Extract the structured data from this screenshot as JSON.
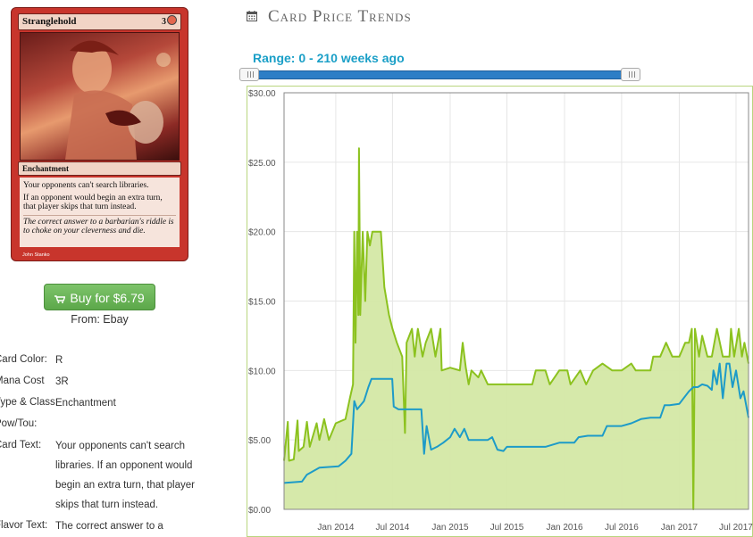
{
  "card": {
    "name": "Stranglehold",
    "mana_cost_glyph": "3",
    "type_line": "Enchantment",
    "rules_text": [
      "Your opponents can't search libraries.",
      "If an opponent would begin an extra turn, that player skips that turn instead."
    ],
    "flavor_text": "The correct answer to a barbarian's riddle is to choke on your cleverness and die.",
    "artist": "John Stanko"
  },
  "buy": {
    "label": "Buy for $6.79",
    "source": "From: Ebay"
  },
  "attributes": [
    {
      "label": "Card Color:",
      "value": "R"
    },
    {
      "label": "Mana Cost",
      "value": "3R"
    },
    {
      "label": "Type & Class:",
      "value": "Enchantment"
    },
    {
      "label": "Pow/Tou:",
      "value": ""
    },
    {
      "label": "Card Text:",
      "value": "Your opponents can't search libraries. If an opponent would begin an extra turn, that player skips that turn instead."
    },
    {
      "label": "Flavor Text:",
      "value": "The correct answer to a"
    }
  ],
  "section": {
    "title": "Card Price Trends",
    "icon": "calendar-icon"
  },
  "range": {
    "label": "Range: 0 - 210 weeks ago",
    "min": 0,
    "max": 210,
    "low": 0,
    "high": 210
  },
  "colors": {
    "accent": "#1a9fc7",
    "green_line": "#8cc21f",
    "green_fill": "#d4e8a5",
    "blue_line": "#1d9bc8",
    "button": "#66b354"
  },
  "chart_data": {
    "type": "area",
    "title": "",
    "xlabel": "",
    "ylabel": "",
    "ylim": [
      0,
      30
    ],
    "yticks": [
      "$0.00",
      "$5.00",
      "$10.00",
      "$15.00",
      "$20.00",
      "$25.00",
      "$30.00"
    ],
    "xticks": [
      {
        "date": "2014-01-01",
        "label": "Jan 2014"
      },
      {
        "date": "2014-07-01",
        "label": "Jul 2014"
      },
      {
        "date": "2015-01-01",
        "label": "Jan 2015"
      },
      {
        "date": "2015-07-01",
        "label": "Jul 2015"
      },
      {
        "date": "2016-01-01",
        "label": "Jan 2016"
      },
      {
        "date": "2016-07-01",
        "label": "Jul 2016"
      },
      {
        "date": "2017-01-01",
        "label": "Jan 2017"
      },
      {
        "date": "2017-07-01",
        "label": "Jul 2017"
      }
    ],
    "xlim": [
      "2013-07-20",
      "2017-08-10"
    ],
    "grid": true,
    "series": [
      {
        "color": "#8cc21f",
        "filled": true,
        "points": [
          [
            "2013-07-20",
            3.5
          ],
          [
            "2013-08-01",
            6.3
          ],
          [
            "2013-08-05",
            3.5
          ],
          [
            "2013-08-20",
            3.6
          ],
          [
            "2013-09-01",
            6.4
          ],
          [
            "2013-09-05",
            4.2
          ],
          [
            "2013-09-20",
            4.5
          ],
          [
            "2013-10-01",
            6.3
          ],
          [
            "2013-10-10",
            4.5
          ],
          [
            "2013-11-01",
            6.2
          ],
          [
            "2013-11-10",
            5
          ],
          [
            "2013-11-25",
            6.5
          ],
          [
            "2013-12-10",
            5
          ],
          [
            "2014-01-01",
            6.2
          ],
          [
            "2014-02-01",
            6.5
          ],
          [
            "2014-02-15",
            8
          ],
          [
            "2014-02-25",
            9
          ],
          [
            "2014-03-01",
            20
          ],
          [
            "2014-03-05",
            12
          ],
          [
            "2014-03-10",
            20
          ],
          [
            "2014-03-14",
            14
          ],
          [
            "2014-03-16",
            26
          ],
          [
            "2014-03-20",
            14
          ],
          [
            "2014-03-28",
            20
          ],
          [
            "2014-04-05",
            15
          ],
          [
            "2014-04-12",
            20
          ],
          [
            "2014-04-20",
            19
          ],
          [
            "2014-04-28",
            20
          ],
          [
            "2014-05-10",
            20
          ],
          [
            "2014-05-25",
            20
          ],
          [
            "2014-06-05",
            16
          ],
          [
            "2014-06-20",
            14
          ],
          [
            "2014-07-01",
            13
          ],
          [
            "2014-07-15",
            12
          ],
          [
            "2014-08-01",
            11
          ],
          [
            "2014-08-10",
            5.5
          ],
          [
            "2014-08-15",
            12
          ],
          [
            "2014-09-01",
            13
          ],
          [
            "2014-09-10",
            11
          ],
          [
            "2014-09-20",
            13
          ],
          [
            "2014-10-05",
            11
          ],
          [
            "2014-10-15",
            12
          ],
          [
            "2014-11-01",
            13
          ],
          [
            "2014-11-15",
            11
          ],
          [
            "2014-12-01",
            13
          ],
          [
            "2014-12-05",
            10
          ],
          [
            "2015-01-01",
            10.2
          ],
          [
            "2015-02-01",
            10
          ],
          [
            "2015-02-10",
            12
          ],
          [
            "2015-02-20",
            10.2
          ],
          [
            "2015-03-01",
            9
          ],
          [
            "2015-03-10",
            10
          ],
          [
            "2015-04-01",
            9.5
          ],
          [
            "2015-04-10",
            10
          ],
          [
            "2015-05-01",
            9
          ],
          [
            "2015-06-01",
            9
          ],
          [
            "2015-07-01",
            9
          ],
          [
            "2015-08-01",
            9
          ],
          [
            "2015-09-01",
            9
          ],
          [
            "2015-09-20",
            9
          ],
          [
            "2015-10-01",
            10
          ],
          [
            "2015-11-01",
            10
          ],
          [
            "2015-11-15",
            9
          ],
          [
            "2015-12-15",
            10
          ],
          [
            "2016-01-10",
            10
          ],
          [
            "2016-01-20",
            9
          ],
          [
            "2016-02-20",
            10
          ],
          [
            "2016-03-10",
            9
          ],
          [
            "2016-04-01",
            10
          ],
          [
            "2016-05-01",
            10.5
          ],
          [
            "2016-06-01",
            10
          ],
          [
            "2016-07-01",
            10
          ],
          [
            "2016-08-01",
            10.5
          ],
          [
            "2016-08-15",
            10
          ],
          [
            "2016-10-01",
            10
          ],
          [
            "2016-10-10",
            11
          ],
          [
            "2016-11-01",
            11
          ],
          [
            "2016-11-20",
            12
          ],
          [
            "2016-12-10",
            11
          ],
          [
            "2017-01-01",
            11
          ],
          [
            "2017-01-20",
            12
          ],
          [
            "2017-02-01",
            12
          ],
          [
            "2017-02-10",
            13
          ],
          [
            "2017-02-15",
            0
          ],
          [
            "2017-02-20",
            13
          ],
          [
            "2017-03-05",
            11
          ],
          [
            "2017-03-15",
            12.5
          ],
          [
            "2017-04-01",
            11
          ],
          [
            "2017-04-15",
            11
          ],
          [
            "2017-05-01",
            13
          ],
          [
            "2017-05-20",
            11
          ],
          [
            "2017-06-10",
            11
          ],
          [
            "2017-06-15",
            13
          ],
          [
            "2017-06-25",
            11
          ],
          [
            "2017-07-10",
            13
          ],
          [
            "2017-07-20",
            11
          ],
          [
            "2017-07-28",
            12
          ],
          [
            "2017-08-10",
            10.5
          ]
        ]
      },
      {
        "color": "#1d9bc8",
        "filled": false,
        "points": [
          [
            "2013-07-20",
            1.9
          ],
          [
            "2013-09-15",
            2
          ],
          [
            "2013-10-01",
            2.5
          ],
          [
            "2013-11-10",
            3
          ],
          [
            "2014-01-10",
            3.1
          ],
          [
            "2014-02-01",
            3.5
          ],
          [
            "2014-02-20",
            4
          ],
          [
            "2014-03-01",
            7.8
          ],
          [
            "2014-03-10",
            7.2
          ],
          [
            "2014-04-01",
            7.8
          ],
          [
            "2014-04-15",
            8.8
          ],
          [
            "2014-04-25",
            9.4
          ],
          [
            "2014-06-01",
            9.4
          ],
          [
            "2014-06-30",
            9.4
          ],
          [
            "2014-07-05",
            7.4
          ],
          [
            "2014-07-20",
            7.2
          ],
          [
            "2014-08-01",
            7.2
          ],
          [
            "2014-09-01",
            7.2
          ],
          [
            "2014-10-01",
            7.2
          ],
          [
            "2014-10-10",
            4
          ],
          [
            "2014-10-18",
            6
          ],
          [
            "2014-11-01",
            4.3
          ],
          [
            "2014-11-20",
            4.5
          ],
          [
            "2014-12-10",
            4.8
          ],
          [
            "2015-01-01",
            5.2
          ],
          [
            "2015-01-15",
            5.8
          ],
          [
            "2015-02-01",
            5.2
          ],
          [
            "2015-02-15",
            5.8
          ],
          [
            "2015-03-01",
            5
          ],
          [
            "2015-04-01",
            5
          ],
          [
            "2015-05-01",
            5
          ],
          [
            "2015-05-15",
            5.2
          ],
          [
            "2015-06-01",
            4.3
          ],
          [
            "2015-06-20",
            4.2
          ],
          [
            "2015-07-01",
            4.5
          ],
          [
            "2015-08-01",
            4.5
          ],
          [
            "2015-09-01",
            4.5
          ],
          [
            "2015-10-01",
            4.5
          ],
          [
            "2015-11-01",
            4.5
          ],
          [
            "2015-12-15",
            4.8
          ],
          [
            "2016-01-01",
            4.8
          ],
          [
            "2016-02-01",
            4.8
          ],
          [
            "2016-02-15",
            5.2
          ],
          [
            "2016-03-15",
            5.3
          ],
          [
            "2016-04-01",
            5.3
          ],
          [
            "2016-05-01",
            5.3
          ],
          [
            "2016-05-15",
            6
          ],
          [
            "2016-06-01",
            6
          ],
          [
            "2016-07-01",
            6
          ],
          [
            "2016-08-01",
            6.2
          ],
          [
            "2016-09-01",
            6.5
          ],
          [
            "2016-10-01",
            6.6
          ],
          [
            "2016-11-01",
            6.6
          ],
          [
            "2016-11-15",
            7.5
          ],
          [
            "2016-12-01",
            7.5
          ],
          [
            "2017-01-01",
            7.6
          ],
          [
            "2017-02-01",
            8.5
          ],
          [
            "2017-02-15",
            8.8
          ],
          [
            "2017-03-01",
            8.8
          ],
          [
            "2017-03-15",
            9
          ],
          [
            "2017-04-01",
            8.9
          ],
          [
            "2017-04-15",
            8.6
          ],
          [
            "2017-04-20",
            10
          ],
          [
            "2017-05-01",
            9
          ],
          [
            "2017-05-10",
            10.5
          ],
          [
            "2017-05-20",
            8
          ],
          [
            "2017-06-01",
            10.5
          ],
          [
            "2017-06-10",
            10.5
          ],
          [
            "2017-06-20",
            8.8
          ],
          [
            "2017-07-01",
            10
          ],
          [
            "2017-07-15",
            8
          ],
          [
            "2017-07-25",
            8.5
          ],
          [
            "2017-08-10",
            6.6
          ]
        ]
      }
    ]
  }
}
